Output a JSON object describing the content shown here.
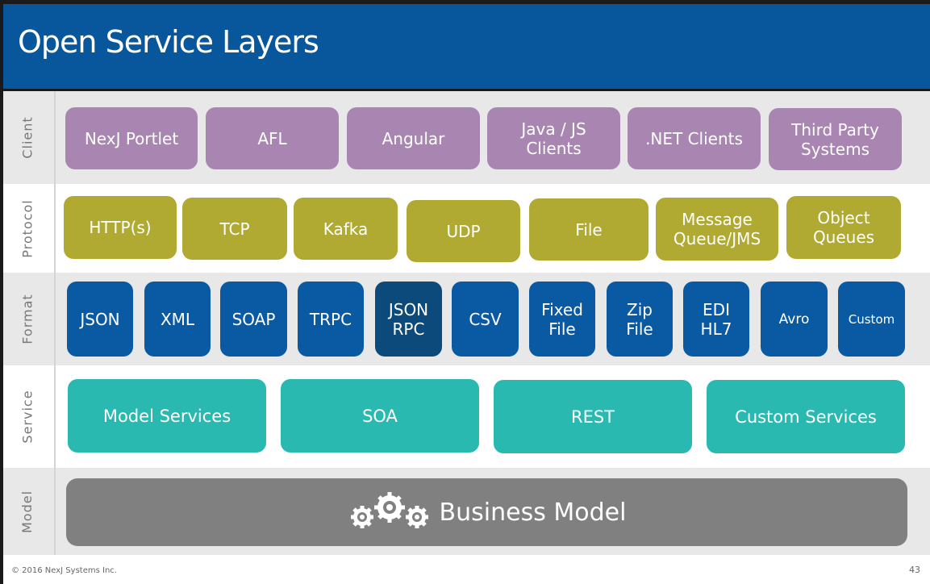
{
  "title": "Open Service Layers",
  "colors": {
    "header": "#08579c",
    "client": "#a986b2",
    "protocol": "#b0aa32",
    "format": "#0a5aa3",
    "format_highlight": "#0b4a7a",
    "service": "#29b9b1",
    "model": "#808080"
  },
  "rows": {
    "client": {
      "label": "Client",
      "items": [
        "NexJ Portlet",
        "AFL",
        "Angular",
        "Java / JS\nClients",
        ".NET Clients",
        "Third Party\nSystems"
      ]
    },
    "protocol": {
      "label": "Protocol",
      "items": [
        "HTTP(s)",
        "TCP",
        "Kafka",
        "UDP",
        "File",
        "Message\nQueue/JMS",
        "Object\nQueues"
      ]
    },
    "format": {
      "label": "Format",
      "items": [
        "JSON",
        "XML",
        "SOAP",
        "TRPC",
        "JSON\nRPC",
        "CSV",
        "Fixed\nFile",
        "Zip\nFile",
        "EDI\nHL7",
        "Avro",
        "Custom"
      ]
    },
    "service": {
      "label": "Service",
      "items": [
        "Model Services",
        "SOA",
        "REST",
        "Custom Services"
      ]
    },
    "model": {
      "label": "Model",
      "item": "Business Model",
      "icon": "gears-icon"
    }
  },
  "footer": {
    "copyright": "© 2016 NexJ Systems Inc.",
    "page": "43"
  }
}
